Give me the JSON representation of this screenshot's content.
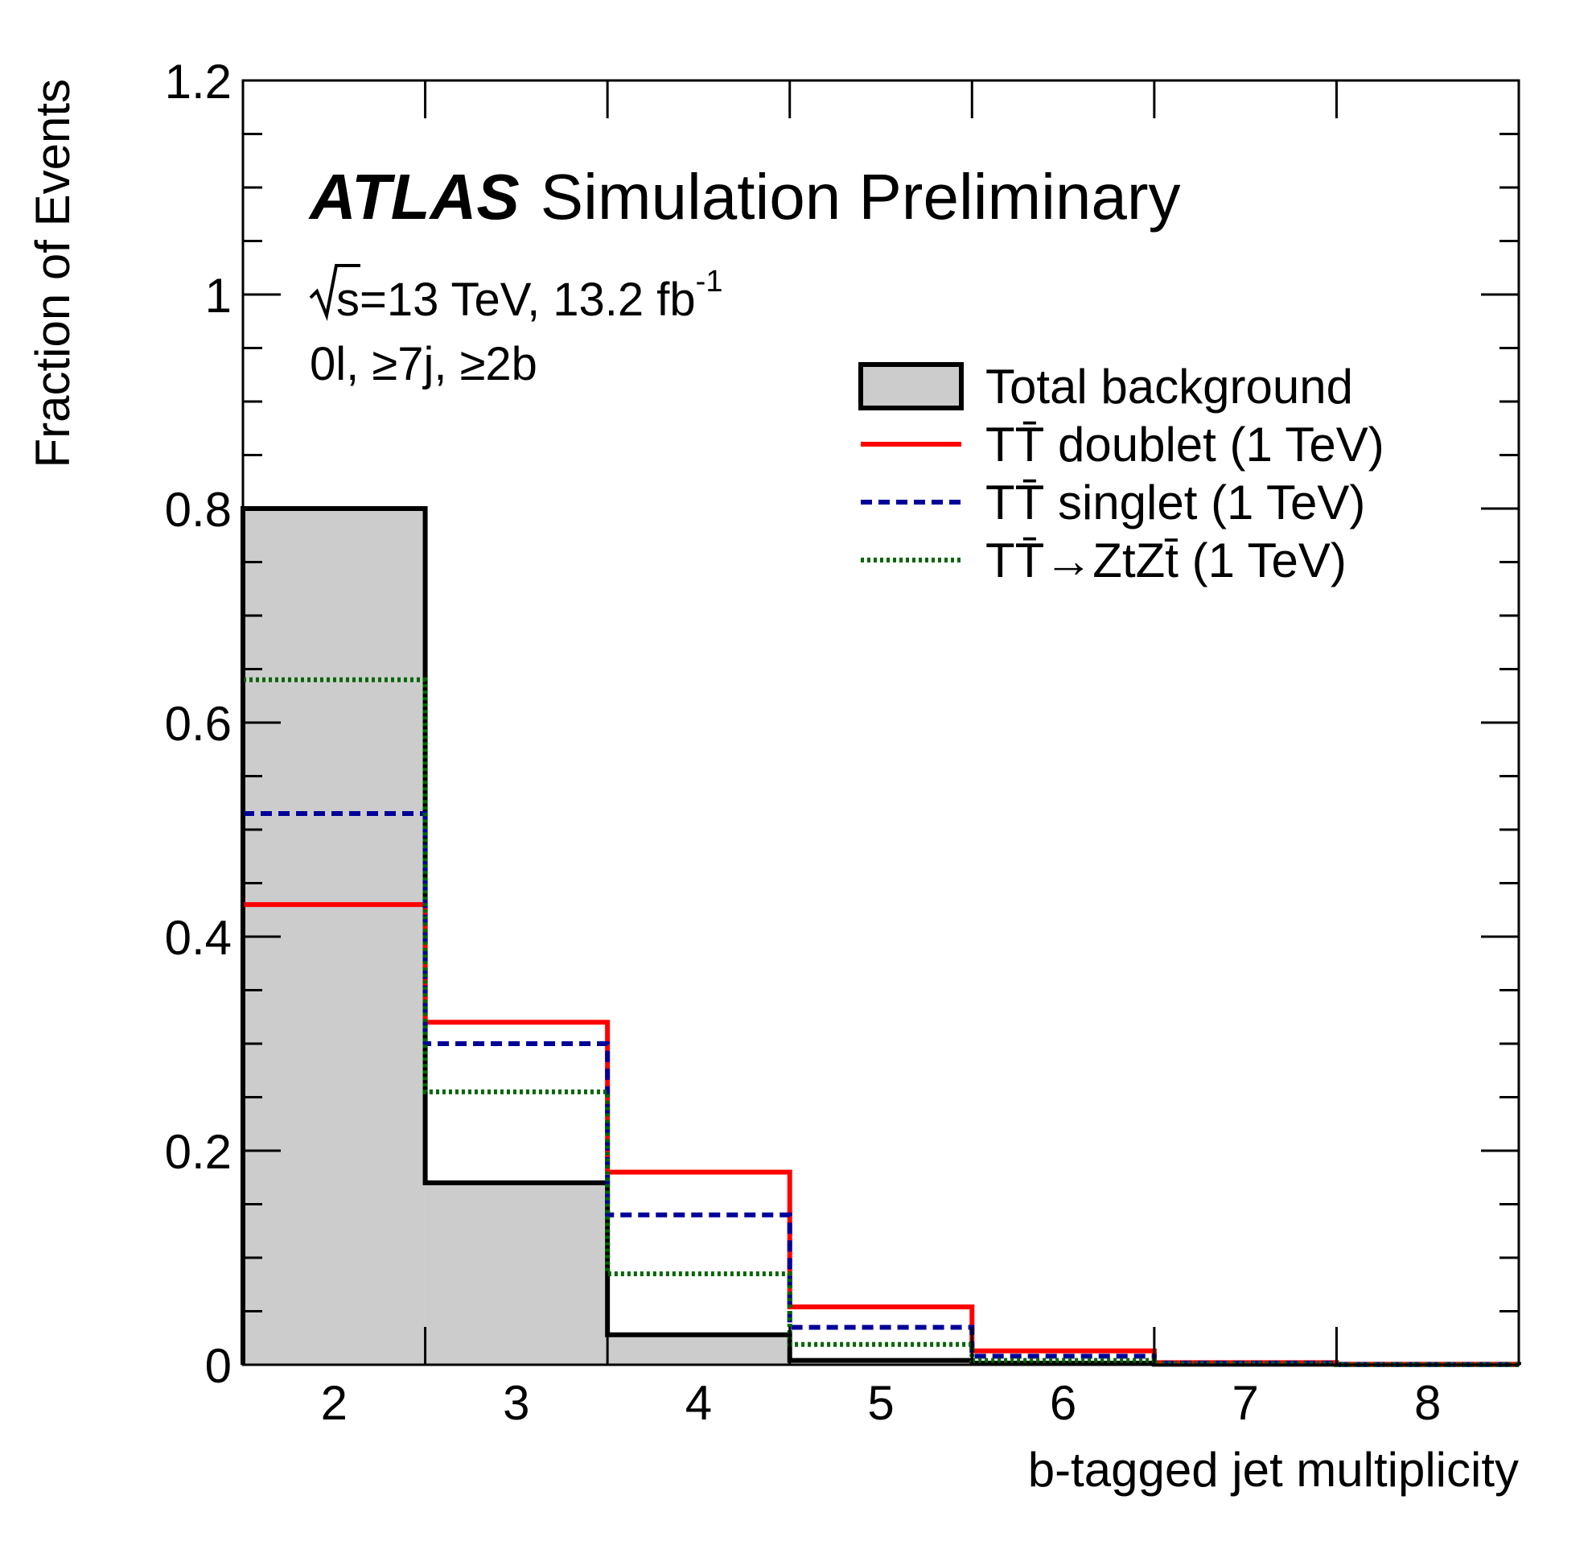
{
  "chart_data": {
    "type": "histogram",
    "title": "",
    "experiment": "ATLAS",
    "experiment_label": "Simulation Preliminary",
    "energy_prefix": "s",
    "energy_text": "=13 TeV, 13.2 fb",
    "energy_superscript": "-1",
    "selection_text": "0l, ≥7j, ≥2b",
    "xlabel": "b-tagged jet multiplicity",
    "ylabel": "Fraction of Events",
    "categories": [
      "2",
      "3",
      "4",
      "5",
      "6",
      "7",
      "8"
    ],
    "ylim": [
      0,
      1.2
    ],
    "y_ticks": [
      "0",
      "0.2",
      "0.4",
      "0.6",
      "0.8",
      "1",
      "1.2"
    ],
    "series": [
      {
        "name": "Total background",
        "style": "filled",
        "color": "#000000",
        "fill": "#cccccc",
        "values": [
          0.8,
          0.17,
          0.028,
          0.004,
          0.0015,
          0.0005,
          0.0002
        ]
      },
      {
        "name": "TT̄ doublet (1 TeV)",
        "style": "solid",
        "color": "#ff0000",
        "values": [
          0.43,
          0.32,
          0.18,
          0.054,
          0.013,
          0.002,
          0.0005
        ]
      },
      {
        "name": "TT̄ singlet (1 TeV)",
        "style": "dashed",
        "color": "#000099",
        "values": [
          0.515,
          0.3,
          0.14,
          0.035,
          0.008,
          0.0015,
          0.0003
        ]
      },
      {
        "name": "TT̄→ZtZt̄ (1 TeV)",
        "style": "dotted",
        "color": "#006600",
        "values": [
          0.64,
          0.255,
          0.085,
          0.019,
          0.004,
          0.001,
          0.0002
        ]
      }
    ],
    "legend_position": "top-right",
    "grid": false
  }
}
